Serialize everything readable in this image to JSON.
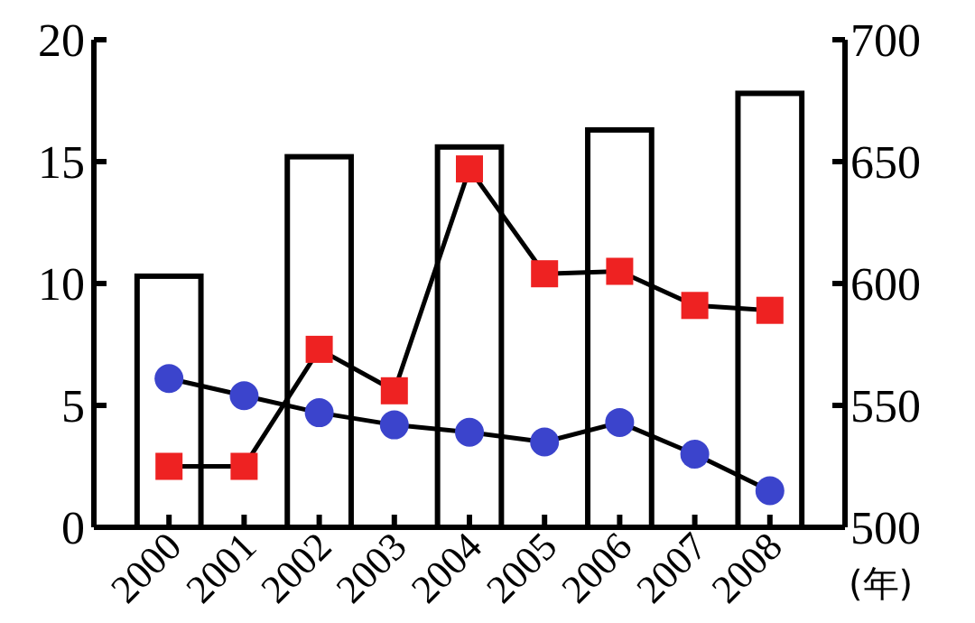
{
  "chart_data": {
    "type": "line",
    "xlabel": "(年)",
    "categories": [
      "2000",
      "2001",
      "2002",
      "2003",
      "2004",
      "2005",
      "2006",
      "2007",
      "2008"
    ],
    "ylim": [
      0,
      20
    ],
    "yticks": [
      0,
      5,
      10,
      15,
      20
    ],
    "y2lim": [
      500,
      700
    ],
    "y2ticks": [
      500,
      550,
      600,
      650,
      700
    ],
    "grid": false,
    "series": [
      {
        "type": "bar",
        "axis": "y2",
        "color": "#ffffff",
        "values": [
          603,
          null,
          652,
          null,
          656,
          null,
          663,
          null,
          678
        ]
      },
      {
        "axis": "y",
        "color": "#ee2222",
        "marker": "square",
        "values": [
          2.5,
          2.5,
          7.3,
          5.6,
          14.7,
          10.4,
          10.5,
          9.1,
          8.9
        ]
      },
      {
        "axis": "y",
        "color": "#3b44cc",
        "marker": "circle",
        "values": [
          6.1,
          5.4,
          4.7,
          4.2,
          3.9,
          3.5,
          4.3,
          3.0,
          1.5
        ]
      }
    ]
  }
}
